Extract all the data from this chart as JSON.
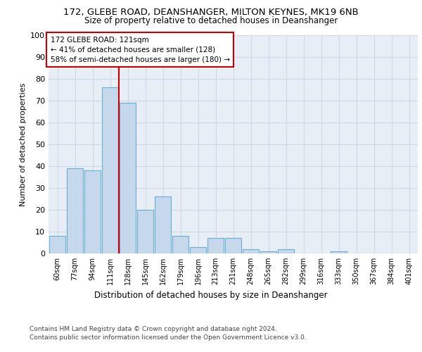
{
  "title1": "172, GLEBE ROAD, DEANSHANGER, MILTON KEYNES, MK19 6NB",
  "title2": "Size of property relative to detached houses in Deanshanger",
  "xlabel": "Distribution of detached houses by size in Deanshanger",
  "ylabel": "Number of detached properties",
  "categories": [
    "60sqm",
    "77sqm",
    "94sqm",
    "111sqm",
    "128sqm",
    "145sqm",
    "162sqm",
    "179sqm",
    "196sqm",
    "213sqm",
    "231sqm",
    "248sqm",
    "265sqm",
    "282sqm",
    "299sqm",
    "316sqm",
    "333sqm",
    "350sqm",
    "367sqm",
    "384sqm",
    "401sqm"
  ],
  "values": [
    8,
    39,
    38,
    76,
    69,
    20,
    26,
    8,
    3,
    7,
    7,
    2,
    1,
    2,
    0,
    0,
    1,
    0,
    0,
    0,
    0
  ],
  "bar_color": "#c5d8ec",
  "bar_edge_color": "#6aaed6",
  "property_line_x": 3.5,
  "annotation_title": "172 GLEBE ROAD: 121sqm",
  "annotation_line1": "← 41% of detached houses are smaller (128)",
  "annotation_line2": "58% of semi-detached houses are larger (180) →",
  "annotation_box_color": "#ffffff",
  "annotation_box_edge": "#cc0000",
  "property_line_color": "#cc0000",
  "grid_color": "#cdd8e8",
  "background_color": "#e8eef5",
  "ylim": [
    0,
    100
  ],
  "yticks": [
    0,
    10,
    20,
    30,
    40,
    50,
    60,
    70,
    80,
    90,
    100
  ],
  "footer1": "Contains HM Land Registry data © Crown copyright and database right 2024.",
  "footer2": "Contains public sector information licensed under the Open Government Licence v3.0."
}
